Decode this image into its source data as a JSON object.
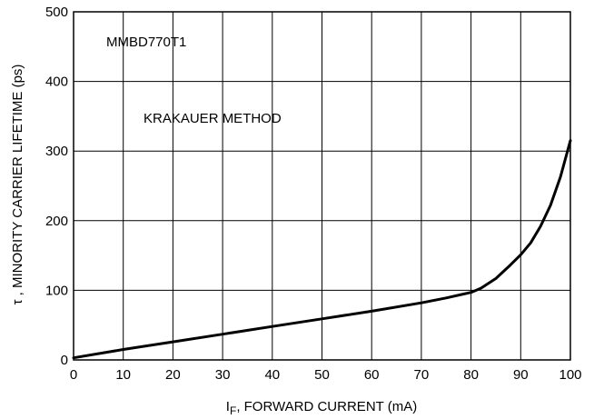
{
  "chart_data": {
    "type": "line",
    "grid": true,
    "xlim": [
      0,
      100
    ],
    "ylim": [
      0,
      500
    ],
    "x_ticks": [
      0,
      10,
      20,
      30,
      40,
      50,
      60,
      70,
      80,
      90,
      100
    ],
    "y_ticks": [
      0,
      100,
      200,
      300,
      400,
      500
    ],
    "xlabel": {
      "main": "I",
      "sub": "F",
      "rest": ", FORWARD CURRENT (mA)"
    },
    "ylabel": "τ , MINORITY CARRIER LIFETIME (ps)",
    "annotations": [
      "MMBD770T1",
      "KRAKAUER METHOD"
    ],
    "series": [
      {
        "color": "#000000",
        "x": [
          0,
          10,
          20,
          30,
          40,
          50,
          60,
          70,
          75,
          80,
          82,
          85,
          88,
          90,
          92,
          94,
          96,
          98,
          100
        ],
        "y": [
          3,
          15,
          26,
          37,
          48,
          59,
          70,
          82,
          89,
          97,
          103,
          117,
          137,
          151,
          168,
          192,
          222,
          263,
          315
        ]
      }
    ]
  }
}
